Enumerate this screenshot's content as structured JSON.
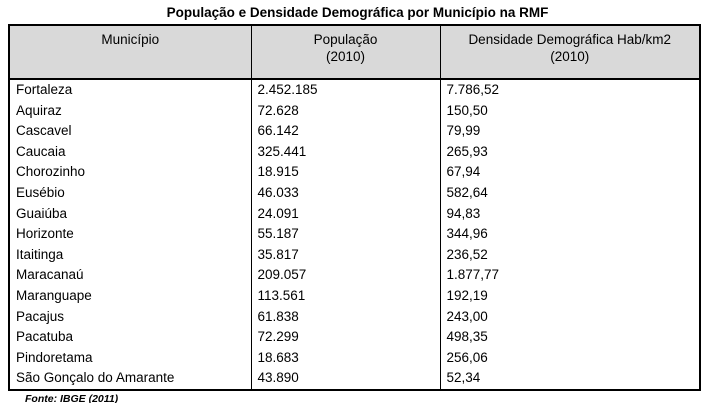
{
  "title": "População e Densidade Demográfica por Município na RMF",
  "colors": {
    "header_bg": "#d9d9d9",
    "border": "#000000",
    "text": "#000000"
  },
  "table": {
    "headers": {
      "municipio": "Município",
      "populacao_line1": "População",
      "populacao_line2": "(2010)",
      "densidade_line1": "Densidade Demográfica Hab/km2",
      "densidade_line2": "(2010)"
    },
    "rows": [
      {
        "municipio": "Fortaleza",
        "populacao": "2.452.185",
        "densidade": "7.786,52"
      },
      {
        "municipio": "Aquiraz",
        "populacao": "72.628",
        "densidade": "150,50"
      },
      {
        "municipio": "Cascavel",
        "populacao": "66.142",
        "densidade": "79,99"
      },
      {
        "municipio": "Caucaia",
        "populacao": "325.441",
        "densidade": "265,93"
      },
      {
        "municipio": "Chorozinho",
        "populacao": "18.915",
        "densidade": "67,94"
      },
      {
        "municipio": "Eusébio",
        "populacao": "46.033",
        "densidade": "582,64"
      },
      {
        "municipio": "Guaiúba",
        "populacao": "24.091",
        "densidade": "94,83"
      },
      {
        "municipio": "Horizonte",
        "populacao": "55.187",
        "densidade": "344,96"
      },
      {
        "municipio": "Itaitinga",
        "populacao": "35.817",
        "densidade": "236,52"
      },
      {
        "municipio": "Maracanaú",
        "populacao": "209.057",
        "densidade": "1.877,77"
      },
      {
        "municipio": "Maranguape",
        "populacao": "113.561",
        "densidade": "192,19"
      },
      {
        "municipio": "Pacajus",
        "populacao": "61.838",
        "densidade": "243,00"
      },
      {
        "municipio": "Pacatuba",
        "populacao": "72.299",
        "densidade": "498,35"
      },
      {
        "municipio": "Pindoretama",
        "populacao": "18.683",
        "densidade": "256,06"
      },
      {
        "municipio": "São Gonçalo do Amarante",
        "populacao": "43.890",
        "densidade": "52,34"
      }
    ]
  },
  "footer": {
    "source": "Fonte: IBGE (2011)"
  }
}
